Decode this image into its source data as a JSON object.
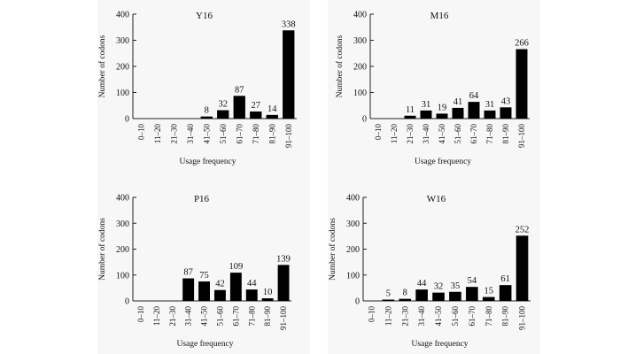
{
  "chart_data": [
    {
      "type": "bar",
      "title": "Y16",
      "xlabel": "Usage frequency",
      "ylabel": "Number of codons",
      "ylim": [
        0,
        400
      ],
      "yticks": [
        "0",
        "100",
        "200",
        "300",
        "400"
      ],
      "categories": [
        "0–10",
        "11–20",
        "21–30",
        "31–40",
        "41–50",
        "51–60",
        "61–70",
        "71–80",
        "81–90",
        "91–100"
      ],
      "values": [
        0,
        0,
        0,
        0,
        8,
        32,
        87,
        27,
        14,
        338
      ],
      "labels": [
        "",
        "",
        "",
        "",
        "8",
        "32",
        "87",
        "27",
        "14",
        "338"
      ]
    },
    {
      "type": "bar",
      "title": "M16",
      "xlabel": "Usage frequency",
      "ylabel": "Number of codons",
      "ylim": [
        0,
        400
      ],
      "yticks": [
        "0",
        "100",
        "200",
        "300",
        "400"
      ],
      "categories": [
        "0–10",
        "11–20",
        "21–30",
        "31–40",
        "41–50",
        "51–60",
        "61–70",
        "71–80",
        "81–90",
        "91–100"
      ],
      "values": [
        0,
        0,
        11,
        31,
        19,
        41,
        64,
        31,
        43,
        266
      ],
      "labels": [
        "",
        "",
        "11",
        "31",
        "19",
        "41",
        "64",
        "31",
        "43",
        "266"
      ]
    },
    {
      "type": "bar",
      "title": "P16",
      "xlabel": "Usage frequency",
      "ylabel": "Number of codons",
      "ylim": [
        0,
        400
      ],
      "yticks": [
        "0",
        "100",
        "200",
        "300",
        "400"
      ],
      "categories": [
        "0–10",
        "11–20",
        "21–30",
        "31–40",
        "41–50",
        "51–60",
        "61–70",
        "71–80",
        "81–90",
        "91–100"
      ],
      "values": [
        0,
        0,
        0,
        87,
        75,
        42,
        109,
        44,
        10,
        139
      ],
      "labels": [
        "",
        "",
        "",
        "87",
        "75",
        "42",
        "109",
        "44",
        "10",
        "139"
      ]
    },
    {
      "type": "bar",
      "title": "W16",
      "xlabel": "Usage frequency",
      "ylabel": "Number of codons",
      "ylim": [
        0,
        400
      ],
      "yticks": [
        "0",
        "100",
        "200",
        "300",
        "400"
      ],
      "categories": [
        "0–10",
        "11–20",
        "21–30",
        "31–40",
        "41–50",
        "51–60",
        "61–70",
        "71–80",
        "81–90",
        "91–100"
      ],
      "values": [
        0,
        5,
        8,
        44,
        32,
        35,
        54,
        15,
        61,
        252
      ],
      "labels": [
        "",
        "5",
        "8",
        "44",
        "32",
        "35",
        "54",
        "15",
        "61",
        "252"
      ]
    }
  ]
}
